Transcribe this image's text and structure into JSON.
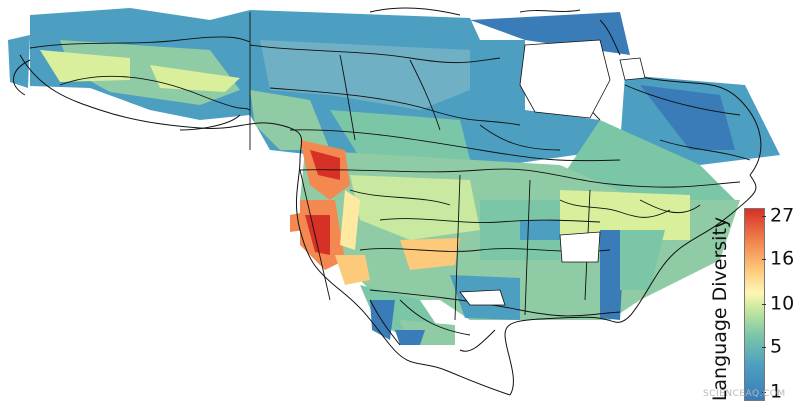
{
  "legend": {
    "title": "Language Diversity",
    "ticks": [
      "27",
      "16",
      "10",
      "5",
      "1"
    ],
    "colors": [
      "#d73027",
      "#f38950",
      "#fdc97a",
      "#fdf7b4",
      "#c8e99f",
      "#7cc6a8",
      "#4c9fc0",
      "#3a7cb8"
    ]
  },
  "watermark": "SCIENCEAQ.COM",
  "palette": {
    "low": "#3a7cb8",
    "mid_low": "#4c9fc0",
    "mid": "#8fcba4",
    "mid_high": "#d9ef9c",
    "high": "#fde9a0",
    "very_high": "#f38950",
    "max": "#d73027",
    "border": "#111111"
  }
}
